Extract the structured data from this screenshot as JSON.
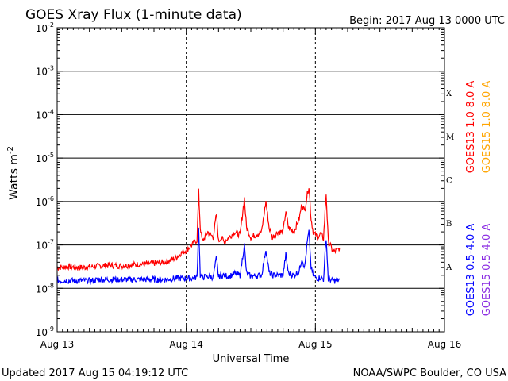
{
  "header": {
    "title": "GOES Xray Flux (1-minute data)",
    "begin": "Begin:  2017 Aug 13 0000 UTC"
  },
  "footer": {
    "updated": "Updated 2017 Aug 15 04:19:12 UTC",
    "credit": "NOAA/SWPC Boulder, CO USA"
  },
  "chart_data": {
    "type": "line",
    "title": "GOES Xray Flux (1-minute data)",
    "xlabel": "Universal Time",
    "ylabel": "Watts m^-2",
    "yscale": "log",
    "xlim_hours": [
      0,
      72
    ],
    "ylim": [
      1e-09,
      0.01
    ],
    "xticks": [
      {
        "hour": 0,
        "label": "Aug 13"
      },
      {
        "hour": 24,
        "label": "Aug 14"
      },
      {
        "hour": 48,
        "label": "Aug 15"
      },
      {
        "hour": 72,
        "label": "Aug 16"
      }
    ],
    "ytick_labels": [
      {
        "value": 1e-09,
        "base": "10",
        "exp": "-9"
      },
      {
        "value": 1e-08,
        "base": "10",
        "exp": "-8"
      },
      {
        "value": 1e-07,
        "base": "10",
        "exp": "-7"
      },
      {
        "value": 1e-06,
        "base": "10",
        "exp": "-6"
      },
      {
        "value": 1e-05,
        "base": "10",
        "exp": "-5"
      },
      {
        "value": 0.0001,
        "base": "10",
        "exp": "-4"
      },
      {
        "value": 0.001,
        "base": "10",
        "exp": "-3"
      },
      {
        "value": 0.01,
        "base": "10",
        "exp": "-2"
      }
    ],
    "flare_classes": [
      {
        "label": "A",
        "value": 3.16e-08
      },
      {
        "label": "B",
        "value": 3.16e-07
      },
      {
        "label": "C",
        "value": 3.16e-06
      },
      {
        "label": "M",
        "value": 3.16e-05
      },
      {
        "label": "X",
        "value": 0.000316
      }
    ],
    "legend": [
      {
        "name": "GOES13 1.0-8.0 A",
        "color": "#ff0000"
      },
      {
        "name": "GOES15 1.0-8.0 A",
        "color": "#ffa500"
      },
      {
        "name": "GOES13 0.5-4.0 A",
        "color": "#0000ff"
      },
      {
        "name": "GOES15 0.5-4.0 A",
        "color": "#8a2be2"
      }
    ],
    "series": [
      {
        "name": "GOES13 1.0-8.0 A",
        "color": "#ff0000",
        "x": [
          0,
          2,
          4,
          6,
          8,
          10,
          12,
          14,
          16,
          18,
          20,
          22,
          23,
          24,
          25,
          26,
          26.3,
          26.6,
          27,
          28,
          29,
          29.6,
          30,
          30.5,
          31,
          32,
          33,
          34,
          34.8,
          35.2,
          36,
          38,
          38.8,
          39.4,
          40,
          41,
          42,
          42.5,
          43,
          44,
          45,
          45.5,
          46,
          46.5,
          46.8,
          47.2,
          47.6,
          48,
          48.5,
          49,
          49.5,
          50,
          50.4,
          50.8,
          51,
          51.5,
          52,
          52.5
        ],
        "y": [
          3e-08,
          3.2e-08,
          3e-08,
          3.1e-08,
          3.3e-08,
          3.4e-08,
          3.3e-08,
          3.5e-08,
          3.6e-08,
          3.8e-08,
          4e-08,
          5e-08,
          6.5e-08,
          7.5e-08,
          1e-07,
          1.3e-07,
          1.7e-06,
          2.5e-07,
          1.2e-07,
          2e-07,
          1.5e-07,
          5e-07,
          1.2e-07,
          1.5e-07,
          1.2e-07,
          1.5e-07,
          2e-07,
          1.7e-07,
          1.2e-06,
          2.5e-07,
          1.5e-07,
          2e-07,
          1e-06,
          2.5e-07,
          1.5e-07,
          2e-07,
          2e-07,
          6e-07,
          2.5e-07,
          2e-07,
          4e-07,
          9e-07,
          6e-07,
          1.5e-06,
          2.2e-06,
          4e-07,
          2e-07,
          1.7e-07,
          1.6e-07,
          1.8e-07,
          1.4e-07,
          1.5e-06,
          1.2e-07,
          1e-07,
          8e-08,
          7e-08,
          7.5e-08,
          8.5e-08
        ]
      },
      {
        "name": "GOES13 0.5-4.0 A",
        "color": "#0000ff",
        "x": [
          0,
          2,
          4,
          6,
          8,
          10,
          12,
          14,
          16,
          18,
          20,
          22,
          24,
          25,
          26,
          26.3,
          26.6,
          27,
          28,
          29,
          29.6,
          30,
          30.5,
          31,
          32,
          33,
          34,
          34.8,
          35.2,
          36,
          38,
          38.8,
          39.4,
          40,
          41,
          42,
          42.5,
          43,
          44,
          45,
          45.5,
          46,
          46.5,
          46.8,
          47.2,
          47.6,
          48,
          48.5,
          49,
          49.5,
          50,
          50.4,
          50.8,
          51,
          51.5,
          52,
          52.5
        ],
        "y": [
          1.5e-08,
          1.5e-08,
          1.5e-08,
          1.5e-08,
          1.6e-08,
          1.6e-08,
          1.6e-08,
          1.6e-08,
          1.6e-08,
          1.6e-08,
          1.6e-08,
          1.7e-08,
          1.7e-08,
          1.7e-08,
          1.8e-08,
          2.8e-07,
          2e-08,
          1.8e-08,
          1.9e-08,
          1.8e-08,
          5e-08,
          1.8e-08,
          2e-08,
          2e-08,
          1.9e-08,
          2.2e-08,
          2e-08,
          1e-07,
          2.2e-08,
          1.9e-08,
          2e-08,
          8e-08,
          2.3e-08,
          2e-08,
          2e-08,
          2e-08,
          6e-08,
          2.2e-08,
          2e-08,
          2.5e-08,
          5e-08,
          3e-08,
          1.2e-07,
          2e-07,
          3e-08,
          2e-08,
          1.8e-08,
          1.7e-08,
          1.8e-08,
          1.6e-08,
          1.5e-07,
          1.6e-08,
          1.6e-08,
          1.5e-08,
          1.5e-08,
          1.5e-08,
          1.6e-08
        ]
      }
    ]
  }
}
